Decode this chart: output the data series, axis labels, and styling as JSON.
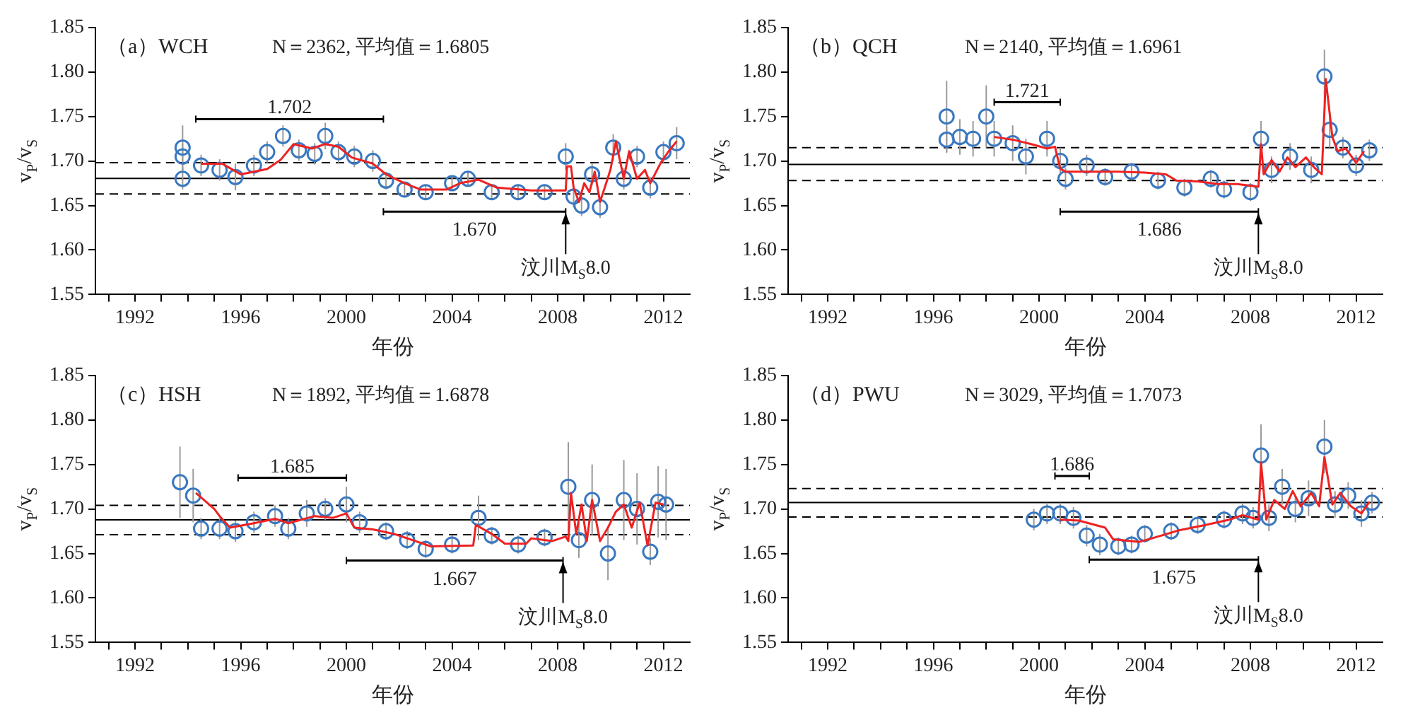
{
  "chart_data": [
    {
      "type": "scatter",
      "title": "（a）WCH",
      "subtitle": "N＝2362, 平均值＝1.6805",
      "xlabel": "年份",
      "ylabel": "v$_{P}$/v$_{S}$",
      "xlim": [
        1990.5,
        2013
      ],
      "ylim": [
        1.55,
        1.85
      ],
      "xticks": [
        {
          "value": 1991,
          "label": null
        },
        1992,
        {
          "value": 1993,
          "label": null
        },
        {
          "value": 1994,
          "label": null
        },
        {
          "value": 1995,
          "label": null
        },
        1996,
        {
          "value": 1997,
          "label": null
        },
        {
          "value": 1998,
          "label": null
        },
        {
          "value": 1999,
          "label": null
        },
        2000,
        {
          "value": 2001,
          "label": null
        },
        {
          "value": 2002,
          "label": null
        },
        {
          "value": 2003,
          "label": null
        },
        2004,
        {
          "value": 2005,
          "label": null
        },
        {
          "value": 2006,
          "label": null
        },
        {
          "value": 2007,
          "label": null
        },
        2008,
        {
          "value": 2009,
          "label": null
        },
        {
          "value": 2010,
          "label": null
        },
        {
          "value": 2011,
          "label": null
        },
        2012
      ],
      "yticks": [
        {
          "value": 1.55,
          "label": "1.55"
        },
        {
          "value": 1.6,
          "label": "1.60"
        },
        {
          "value": 1.65,
          "label": "1.65"
        },
        {
          "value": 1.7,
          "label": "1.70"
        },
        {
          "value": 1.75,
          "label": "1.75"
        },
        {
          "value": 1.8,
          "label": "1.80"
        },
        {
          "value": 1.85,
          "label": "1.85"
        }
      ],
      "grid": false,
      "legend": false,
      "series": [
        {
          "type": "scatter",
          "marker": "circle",
          "color": "#3a78c0",
          "x": [
            1993.8,
            1993.8,
            1993.8,
            1994.5,
            1995.2,
            1995.8,
            1996.5,
            1997,
            1997.6,
            1998.2,
            1998.8,
            1999.2,
            1999.7,
            2000.3,
            2001,
            2001.5,
            2002.2,
            2003,
            2004,
            2004.6,
            2005.5,
            2006.5,
            2007.5,
            2008.3,
            2008.6,
            2008.9,
            2009.3,
            2009.6,
            2010.1,
            2010.5,
            2011,
            2011.5,
            2012,
            2012.5
          ],
          "values": [
            1.715,
            1.705,
            1.68,
            1.695,
            1.69,
            1.682,
            1.695,
            1.71,
            1.728,
            1.712,
            1.708,
            1.728,
            1.71,
            1.705,
            1.7,
            1.678,
            1.668,
            1.665,
            1.675,
            1.68,
            1.665,
            1.665,
            1.665,
            1.705,
            1.66,
            1.65,
            1.685,
            1.648,
            1.715,
            1.68,
            1.705,
            1.67,
            1.71,
            1.72
          ],
          "errors": [
            0.025,
            0.015,
            0.012,
            0.012,
            0.012,
            0.015,
            0.012,
            0.012,
            0.012,
            0.012,
            0.012,
            0.015,
            0.012,
            0.012,
            0.012,
            0.01,
            0.008,
            0.008,
            0.008,
            0.008,
            0.008,
            0.008,
            0.008,
            0.015,
            0.012,
            0.012,
            0.012,
            0.012,
            0.015,
            0.012,
            0.012,
            0.012,
            0.012,
            0.018
          ]
        },
        {
          "type": "line",
          "marker": "none",
          "color": "#ee2222",
          "x": [
            1994.5,
            1995.3,
            1996,
            1997,
            1997.5,
            1998,
            1998.7,
            1999.2,
            1999.7,
            2000.2,
            2001,
            2001.5,
            2002.2,
            2002.8,
            2003.8,
            2004.3,
            2005,
            2005.7,
            2007,
            2008.3,
            2008.35,
            2008.5,
            2008.6,
            2008.8,
            2009,
            2009.2,
            2009.4,
            2009.6,
            2009.8,
            2010,
            2010.2,
            2010.5,
            2010.7,
            2011,
            2011.3,
            2011.5,
            2011.9,
            2012.2,
            2012.5
          ],
          "values": [
            1.697,
            1.697,
            1.685,
            1.691,
            1.701,
            1.719,
            1.714,
            1.719,
            1.716,
            1.704,
            1.697,
            1.685,
            1.675,
            1.668,
            1.668,
            1.675,
            1.679,
            1.67,
            1.667,
            1.667,
            1.694,
            1.694,
            1.67,
            1.654,
            1.675,
            1.665,
            1.688,
            1.654,
            1.672,
            1.691,
            1.722,
            1.68,
            1.711,
            1.68,
            1.69,
            1.675,
            1.698,
            1.711,
            1.722
          ]
        },
        {
          "type": "line",
          "marker": "none",
          "color": "#000000",
          "x": [
            1994.3,
            2001.4
          ],
          "values": [
            1.747,
            1.747
          ],
          "errors": [
            0.004,
            0.004
          ]
        },
        {
          "type": "line",
          "marker": "none",
          "color": "#000000",
          "x": [
            2001.4,
            2008.3
          ],
          "values": [
            1.643,
            1.643
          ],
          "errors": [
            0.004,
            0.004
          ]
        }
      ],
      "ref_lines": [
        {
          "axis": "y",
          "value": 1.6805,
          "color": "#000000",
          "line_style": "solid"
        },
        {
          "axis": "y",
          "value": 1.698,
          "color": "#000000",
          "line_style": "dashed"
        },
        {
          "axis": "y",
          "value": 1.663,
          "color": "#000000",
          "line_style": "dashed"
        }
      ],
      "annotations": [
        {
          "text": "1.702",
          "x": 1997.85,
          "y": 1.747
        },
        {
          "text": "1.670",
          "x": 2004.85,
          "y": 1.643
        },
        {
          "text": "汶川M$_{S}$8.0",
          "x": 2008.3,
          "y": 1.643
        }
      ]
    },
    {
      "type": "scatter",
      "title": "（b）QCH",
      "subtitle": "N＝2140, 平均值＝1.6961",
      "xlabel": "年份",
      "ylabel": "v$_{P}$/v$_{S}$",
      "xlim": [
        1990.5,
        2013
      ],
      "ylim": [
        1.55,
        1.85
      ],
      "xticks": [
        {
          "value": 1991,
          "label": null
        },
        1992,
        {
          "value": 1993,
          "label": null
        },
        {
          "value": 1994,
          "label": null
        },
        {
          "value": 1995,
          "label": null
        },
        1996,
        {
          "value": 1997,
          "label": null
        },
        {
          "value": 1998,
          "label": null
        },
        {
          "value": 1999,
          "label": null
        },
        2000,
        {
          "value": 2001,
          "label": null
        },
        {
          "value": 2002,
          "label": null
        },
        {
          "value": 2003,
          "label": null
        },
        2004,
        {
          "value": 2005,
          "label": null
        },
        {
          "value": 2006,
          "label": null
        },
        {
          "value": 2007,
          "label": null
        },
        2008,
        {
          "value": 2009,
          "label": null
        },
        {
          "value": 2010,
          "label": null
        },
        {
          "value": 2011,
          "label": null
        },
        2012
      ],
      "yticks": [
        {
          "value": 1.55,
          "label": "1.55"
        },
        {
          "value": 1.6,
          "label": "1.60"
        },
        {
          "value": 1.65,
          "label": "1.65"
        },
        {
          "value": 1.7,
          "label": "1.70"
        },
        {
          "value": 1.75,
          "label": "1.75"
        },
        {
          "value": 1.8,
          "label": "1.80"
        },
        {
          "value": 1.85,
          "label": "1.85"
        }
      ],
      "grid": false,
      "legend": false,
      "series": [
        {
          "type": "scatter",
          "marker": "circle",
          "color": "#3a78c0",
          "x": [
            1996.5,
            1996.5,
            1997,
            1997.5,
            1998,
            1998.3,
            1999,
            1999.5,
            2000.3,
            2000.8,
            2001,
            2001.8,
            2002.5,
            2003.5,
            2004.5,
            2005.5,
            2006.5,
            2007,
            2008,
            2008.4,
            2008.8,
            2009.5,
            2010.3,
            2010.8,
            2011,
            2011.5,
            2012,
            2012.5
          ],
          "values": [
            1.75,
            1.724,
            1.727,
            1.725,
            1.75,
            1.725,
            1.72,
            1.705,
            1.725,
            1.7,
            1.68,
            1.695,
            1.682,
            1.688,
            1.678,
            1.67,
            1.68,
            1.668,
            1.665,
            1.725,
            1.69,
            1.705,
            1.69,
            1.795,
            1.735,
            1.715,
            1.695,
            1.712
          ],
          "errors": [
            0.04,
            0.015,
            0.02,
            0.02,
            0.035,
            0.02,
            0.02,
            0.02,
            0.02,
            0.015,
            0.012,
            0.012,
            0.01,
            0.01,
            0.01,
            0.01,
            0.01,
            0.01,
            0.01,
            0.02,
            0.015,
            0.015,
            0.015,
            0.03,
            0.02,
            0.012,
            0.012,
            0.012
          ]
        },
        {
          "type": "line",
          "marker": "none",
          "color": "#ee2222",
          "x": [
            1998.3,
            1999,
            1999.7,
            2000.3,
            2000.6,
            2000.8,
            2001,
            2002,
            2003,
            2004,
            2004.8,
            2005.2,
            2006,
            2006.8,
            2007.5,
            2008.3,
            2008.4,
            2008.5,
            2008.8,
            2009.1,
            2009.4,
            2009.7,
            2010.1,
            2010.4,
            2010.7,
            2010.85,
            2011.1,
            2011.3,
            2011.6,
            2012,
            2012.3
          ],
          "values": [
            1.727,
            1.724,
            1.719,
            1.714,
            1.716,
            1.691,
            1.688,
            1.688,
            1.688,
            1.687,
            1.685,
            1.678,
            1.677,
            1.674,
            1.674,
            1.671,
            1.719,
            1.685,
            1.701,
            1.688,
            1.704,
            1.693,
            1.704,
            1.693,
            1.685,
            1.792,
            1.727,
            1.711,
            1.714,
            1.698,
            1.711
          ]
        },
        {
          "type": "line",
          "marker": "none",
          "color": "#000000",
          "x": [
            1998.3,
            2000.8
          ],
          "values": [
            1.766,
            1.766
          ],
          "errors": [
            0.004,
            0.004
          ]
        },
        {
          "type": "line",
          "marker": "none",
          "color": "#000000",
          "x": [
            2000.8,
            2008.3
          ],
          "values": [
            1.643,
            1.643
          ],
          "errors": [
            0.004,
            0.004
          ]
        }
      ],
      "ref_lines": [
        {
          "axis": "y",
          "value": 1.6961,
          "color": "#000000",
          "line_style": "solid"
        },
        {
          "axis": "y",
          "value": 1.715,
          "color": "#000000",
          "line_style": "dashed"
        },
        {
          "axis": "y",
          "value": 1.678,
          "color": "#000000",
          "line_style": "dashed"
        }
      ],
      "annotations": [
        {
          "text": "1.721",
          "x": 1999.55,
          "y": 1.766
        },
        {
          "text": "1.686",
          "x": 2004.55,
          "y": 1.643
        },
        {
          "text": "汶川M$_{S}$8.0",
          "x": 2008.3,
          "y": 1.643
        }
      ]
    },
    {
      "type": "scatter",
      "title": "（c）HSH",
      "subtitle": "N＝1892, 平均值＝1.6878",
      "xlabel": "年份",
      "ylabel": "v$_{P}$/v$_{S}$",
      "xlim": [
        1990.5,
        2013
      ],
      "ylim": [
        1.55,
        1.85
      ],
      "xticks": [
        {
          "value": 1991,
          "label": null
        },
        1992,
        {
          "value": 1993,
          "label": null
        },
        {
          "value": 1994,
          "label": null
        },
        {
          "value": 1995,
          "label": null
        },
        1996,
        {
          "value": 1997,
          "label": null
        },
        {
          "value": 1998,
          "label": null
        },
        {
          "value": 1999,
          "label": null
        },
        2000,
        {
          "value": 2001,
          "label": null
        },
        {
          "value": 2002,
          "label": null
        },
        {
          "value": 2003,
          "label": null
        },
        2004,
        {
          "value": 2005,
          "label": null
        },
        {
          "value": 2006,
          "label": null
        },
        {
          "value": 2007,
          "label": null
        },
        2008,
        {
          "value": 2009,
          "label": null
        },
        {
          "value": 2010,
          "label": null
        },
        {
          "value": 2011,
          "label": null
        },
        2012
      ],
      "yticks": [
        {
          "value": 1.55,
          "label": "1.55"
        },
        {
          "value": 1.6,
          "label": "1.60"
        },
        {
          "value": 1.65,
          "label": "1.65"
        },
        {
          "value": 1.7,
          "label": "1.70"
        },
        {
          "value": 1.75,
          "label": "1.75"
        },
        {
          "value": 1.8,
          "label": "1.80"
        },
        {
          "value": 1.85,
          "label": "1.85"
        }
      ],
      "grid": false,
      "legend": false,
      "series": [
        {
          "type": "scatter",
          "marker": "circle",
          "color": "#3a78c0",
          "x": [
            1993.7,
            1994.2,
            1994.5,
            1995.2,
            1995.8,
            1996.5,
            1997.3,
            1997.8,
            1998.5,
            1999.2,
            2000,
            2000.5,
            2001.5,
            2002.3,
            2003,
            2004,
            2005,
            2005.5,
            2006.5,
            2007.5,
            2008.4,
            2008.8,
            2009.3,
            2009.9,
            2010.5,
            2011,
            2011.5,
            2011.8,
            2012.1
          ],
          "values": [
            1.73,
            1.715,
            1.678,
            1.678,
            1.675,
            1.685,
            1.692,
            1.678,
            1.695,
            1.7,
            1.705,
            1.685,
            1.675,
            1.665,
            1.655,
            1.66,
            1.69,
            1.67,
            1.66,
            1.668,
            1.725,
            1.665,
            1.71,
            1.65,
            1.71,
            1.7,
            1.652,
            1.708,
            1.705
          ],
          "errors": [
            0.04,
            0.03,
            0.012,
            0.012,
            0.012,
            0.012,
            0.012,
            0.012,
            0.015,
            0.012,
            0.02,
            0.012,
            0.01,
            0.01,
            0.01,
            0.01,
            0.025,
            0.01,
            0.01,
            0.01,
            0.05,
            0.02,
            0.04,
            0.03,
            0.045,
            0.04,
            0.015,
            0.04,
            0.04
          ]
        },
        {
          "type": "line",
          "marker": "none",
          "color": "#ee2222",
          "x": [
            1994.3,
            1995,
            1995.2,
            1995.6,
            1996.5,
            1997.3,
            1997.8,
            1998.8,
            1999.5,
            2000,
            2000.3,
            2001,
            2001.8,
            2002.5,
            2003.2,
            2004.8,
            2004.9,
            2005.5,
            2006,
            2006.8,
            2007,
            2007.8,
            2008.3,
            2008.4,
            2008.5,
            2008.7,
            2008.9,
            2009.1,
            2009.3,
            2009.6,
            2009.9,
            2010.2,
            2010.5,
            2010.8,
            2011.1,
            2011.4,
            2011.7,
            2012
          ],
          "values": [
            1.718,
            1.7,
            1.692,
            1.679,
            1.684,
            1.689,
            1.684,
            1.692,
            1.69,
            1.695,
            1.679,
            1.677,
            1.672,
            1.665,
            1.658,
            1.659,
            1.682,
            1.672,
            1.661,
            1.661,
            1.667,
            1.664,
            1.669,
            1.664,
            1.718,
            1.672,
            1.705,
            1.664,
            1.71,
            1.664,
            1.679,
            1.697,
            1.705,
            1.679,
            1.707,
            1.659,
            1.707,
            1.705
          ]
        },
        {
          "type": "line",
          "marker": "none",
          "color": "#000000",
          "x": [
            1995.9,
            2000
          ],
          "values": [
            1.735,
            1.735
          ],
          "errors": [
            0.004,
            0.004
          ]
        },
        {
          "type": "line",
          "marker": "none",
          "color": "#000000",
          "x": [
            2000,
            2008.2
          ],
          "values": [
            1.642,
            1.642
          ],
          "errors": [
            0.004,
            0.004
          ]
        }
      ],
      "ref_lines": [
        {
          "axis": "y",
          "value": 1.6878,
          "color": "#000000",
          "line_style": "solid"
        },
        {
          "axis": "y",
          "value": 1.704,
          "color": "#000000",
          "line_style": "dashed"
        },
        {
          "axis": "y",
          "value": 1.671,
          "color": "#000000",
          "line_style": "dashed"
        }
      ],
      "annotations": [
        {
          "text": "1.685",
          "x": 1997.95,
          "y": 1.735
        },
        {
          "text": "1.667",
          "x": 2004.1,
          "y": 1.642
        },
        {
          "text": "汶川M$_{S}$8.0",
          "x": 2008.2,
          "y": 1.642
        }
      ]
    },
    {
      "type": "scatter",
      "title": "（d）PWU",
      "subtitle": "N＝3029, 平均值＝1.7073",
      "xlabel": "年份",
      "ylabel": "v$_{P}$/v$_{S}$",
      "xlim": [
        1990.5,
        2013
      ],
      "ylim": [
        1.55,
        1.85
      ],
      "xticks": [
        {
          "value": 1991,
          "label": null
        },
        1992,
        {
          "value": 1993,
          "label": null
        },
        {
          "value": 1994,
          "label": null
        },
        {
          "value": 1995,
          "label": null
        },
        1996,
        {
          "value": 1997,
          "label": null
        },
        {
          "value": 1998,
          "label": null
        },
        {
          "value": 1999,
          "label": null
        },
        2000,
        {
          "value": 2001,
          "label": null
        },
        {
          "value": 2002,
          "label": null
        },
        {
          "value": 2003,
          "label": null
        },
        2004,
        {
          "value": 2005,
          "label": null
        },
        {
          "value": 2006,
          "label": null
        },
        {
          "value": 2007,
          "label": null
        },
        2008,
        {
          "value": 2009,
          "label": null
        },
        {
          "value": 2010,
          "label": null
        },
        {
          "value": 2011,
          "label": null
        },
        2012
      ],
      "yticks": [
        {
          "value": 1.55,
          "label": "1.55"
        },
        {
          "value": 1.6,
          "label": "1.60"
        },
        {
          "value": 1.65,
          "label": "1.65"
        },
        {
          "value": 1.7,
          "label": "1.70"
        },
        {
          "value": 1.75,
          "label": "1.75"
        },
        {
          "value": 1.8,
          "label": "1.80"
        },
        {
          "value": 1.85,
          "label": "1.85"
        }
      ],
      "grid": false,
      "legend": false,
      "series": [
        {
          "type": "scatter",
          "marker": "circle",
          "color": "#3a78c0",
          "x": [
            1999.8,
            2000.3,
            2000.8,
            2001.3,
            2001.8,
            2002.3,
            2003,
            2003.5,
            2004,
            2005,
            2006,
            2007,
            2007.7,
            2008.1,
            2008.4,
            2008.7,
            2009.2,
            2009.7,
            2010.2,
            2010.8,
            2011.2,
            2011.7,
            2012.2,
            2012.6
          ],
          "values": [
            1.688,
            1.695,
            1.695,
            1.69,
            1.67,
            1.66,
            1.658,
            1.66,
            1.672,
            1.675,
            1.682,
            1.688,
            1.695,
            1.69,
            1.76,
            1.69,
            1.725,
            1.7,
            1.712,
            1.77,
            1.705,
            1.715,
            1.695,
            1.707
          ],
          "errors": [
            0.012,
            0.012,
            0.012,
            0.012,
            0.012,
            0.012,
            0.01,
            0.01,
            0.01,
            0.01,
            0.01,
            0.01,
            0.012,
            0.012,
            0.035,
            0.015,
            0.02,
            0.015,
            0.02,
            0.03,
            0.015,
            0.015,
            0.015,
            0.012
          ]
        },
        {
          "type": "line",
          "marker": "none",
          "color": "#ee2222",
          "x": [
            2000.8,
            2001.5,
            2002.5,
            2002.8,
            2003.8,
            2004.5,
            2005.3,
            2006.3,
            2007.2,
            2007.7,
            2008.3,
            2008.4,
            2008.6,
            2008.9,
            2009.3,
            2009.6,
            2009.9,
            2010.3,
            2010.6,
            2010.8,
            2011.1,
            2011.4,
            2011.8,
            2012.2,
            2012.5
          ],
          "values": [
            1.688,
            1.687,
            1.679,
            1.666,
            1.663,
            1.669,
            1.676,
            1.682,
            1.688,
            1.693,
            1.688,
            1.752,
            1.688,
            1.71,
            1.7,
            1.72,
            1.703,
            1.718,
            1.703,
            1.758,
            1.705,
            1.718,
            1.703,
            1.695,
            1.708
          ]
        },
        {
          "type": "line",
          "marker": "none",
          "color": "#000000",
          "x": [
            2000.6,
            2001.9
          ],
          "values": [
            1.737,
            1.737
          ],
          "errors": [
            0.004,
            0.004
          ]
        },
        {
          "type": "line",
          "marker": "none",
          "color": "#000000",
          "x": [
            2001.9,
            2008.3
          ],
          "values": [
            1.643,
            1.643
          ],
          "errors": [
            0.004,
            0.004
          ]
        }
      ],
      "ref_lines": [
        {
          "axis": "y",
          "value": 1.7073,
          "color": "#000000",
          "line_style": "solid"
        },
        {
          "axis": "y",
          "value": 1.723,
          "color": "#000000",
          "line_style": "dashed"
        },
        {
          "axis": "y",
          "value": 1.691,
          "color": "#000000",
          "line_style": "dashed"
        }
      ],
      "annotations": [
        {
          "text": "1.686",
          "x": 2001.25,
          "y": 1.737
        },
        {
          "text": "1.675",
          "x": 2005.1,
          "y": 1.643
        },
        {
          "text": "汶川M$_{S}$8.0",
          "x": 2008.3,
          "y": 1.643
        }
      ]
    }
  ]
}
